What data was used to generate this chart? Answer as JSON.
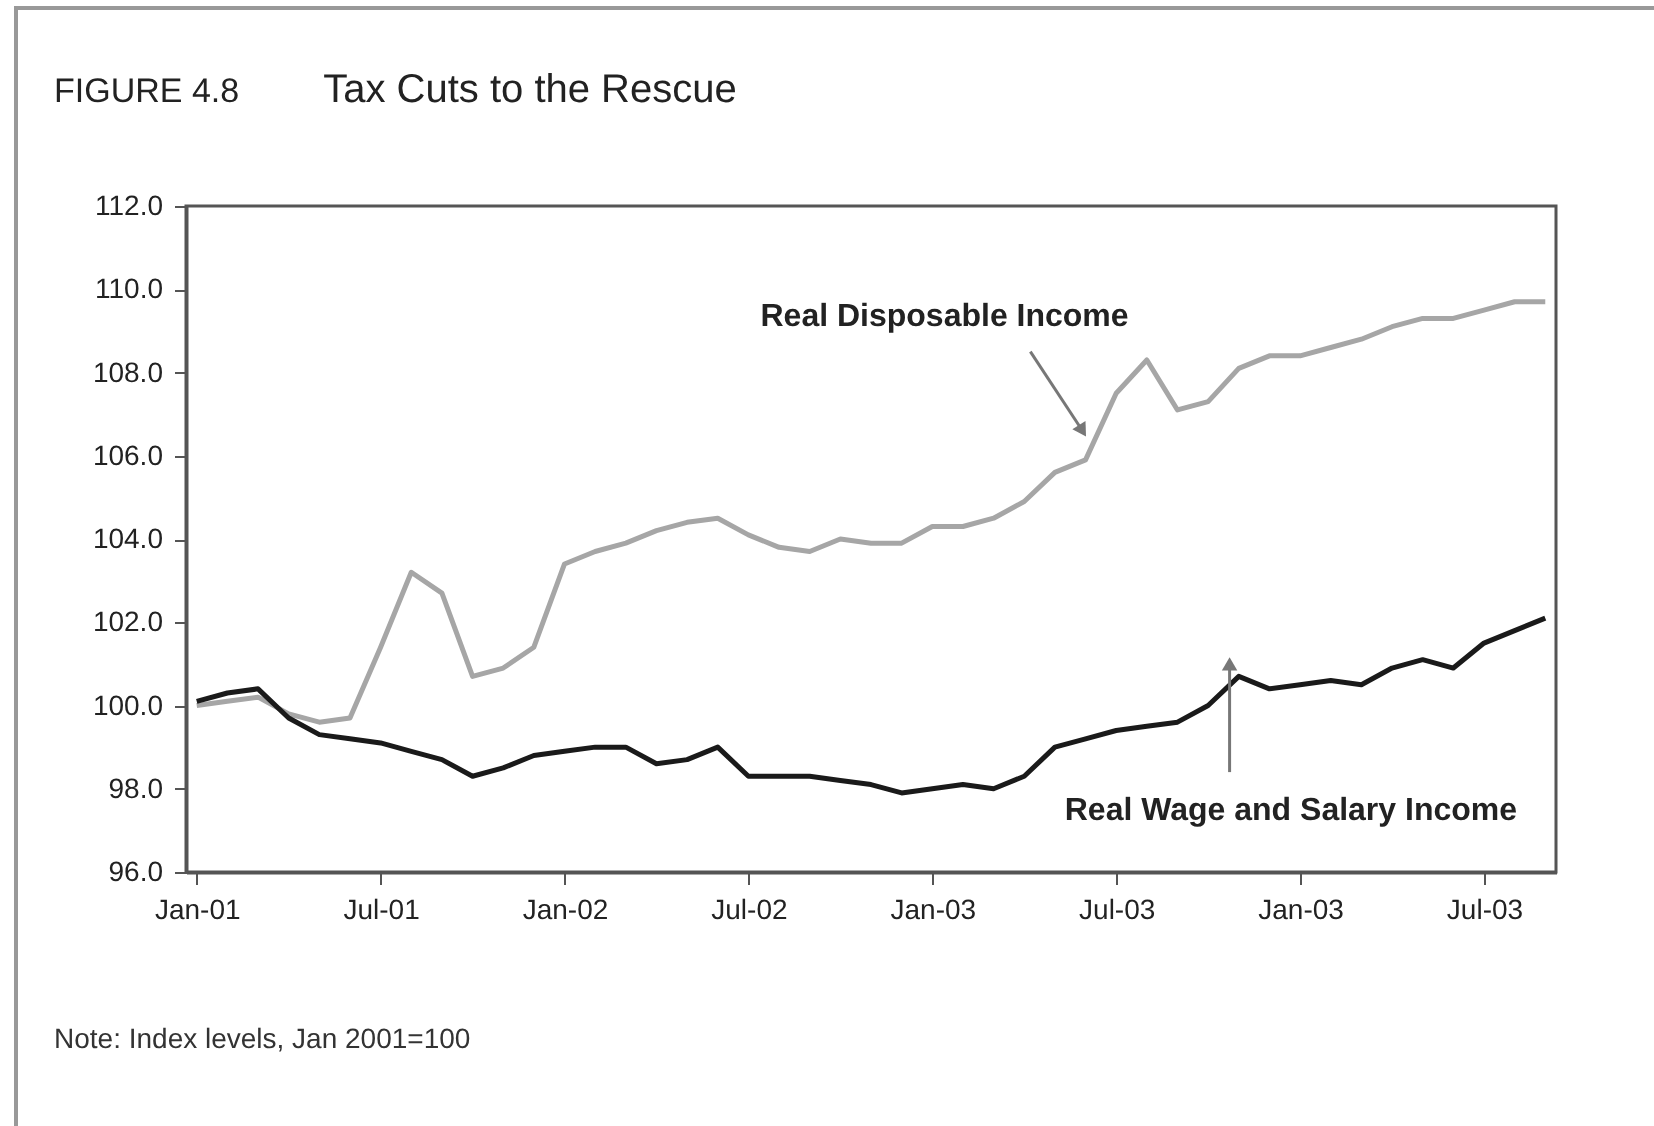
{
  "chart_data": {
    "type": "line",
    "title": "Tax Cuts to the Rescue",
    "annotations": [
      "FIGURE 4.8",
      "Note: Index levels, Jan 2001=100"
    ],
    "categories": [
      "Jan-01",
      null,
      null,
      null,
      null,
      null,
      "Jul-01",
      null,
      null,
      null,
      null,
      null,
      "Jan-02",
      null,
      null,
      null,
      null,
      null,
      "Jul-02",
      null,
      null,
      null,
      null,
      null,
      "Jan-03",
      null,
      null,
      null,
      null,
      null,
      "Jul-03",
      null,
      null,
      null,
      null,
      null,
      "Jan-03",
      null,
      null,
      null,
      null,
      null,
      "Jul-03",
      null,
      null
    ],
    "series": [
      {
        "name": "Real Disposable Income",
        "color": "#a6a6a6",
        "values": [
          100.0,
          100.1,
          100.2,
          99.8,
          99.6,
          99.7,
          101.4,
          103.2,
          102.7,
          100.7,
          100.9,
          101.4,
          103.4,
          103.7,
          103.9,
          104.2,
          104.4,
          104.5,
          104.1,
          103.8,
          103.7,
          104.0,
          103.9,
          103.9,
          104.3,
          104.3,
          104.5,
          104.9,
          105.6,
          105.9,
          107.5,
          108.3,
          107.1,
          107.3,
          108.1,
          108.4,
          108.4,
          108.6,
          108.8,
          109.1,
          109.3,
          109.3,
          109.5,
          109.7,
          109.7
        ]
      },
      {
        "name": "Real Wage and Salary Income",
        "color": "#1a1a1a",
        "values": [
          100.1,
          100.3,
          100.4,
          99.7,
          99.3,
          99.2,
          99.1,
          98.9,
          98.7,
          98.3,
          98.5,
          98.8,
          98.9,
          99.0,
          99.0,
          98.6,
          98.7,
          99.0,
          98.3,
          98.3,
          98.3,
          98.2,
          98.1,
          97.9,
          98.0,
          98.1,
          98.0,
          98.3,
          99.0,
          99.2,
          99.4,
          99.5,
          99.6,
          100.0,
          100.7,
          100.4,
          100.5,
          100.6,
          100.5,
          100.9,
          101.1,
          100.9,
          101.5,
          101.8,
          102.1
        ]
      }
    ],
    "ylim": [
      96,
      112
    ],
    "yticks": [
      {
        "value": 96,
        "label": "96.0"
      },
      {
        "value": 98,
        "label": "98.0"
      },
      {
        "value": 100,
        "label": "100.0"
      },
      {
        "value": 102,
        "label": "102.0"
      },
      {
        "value": 104,
        "label": "104.0"
      },
      {
        "value": 106,
        "label": "106.0"
      },
      {
        "value": 108,
        "label": "108.0"
      },
      {
        "value": 110,
        "label": "110.0"
      },
      {
        "value": 112,
        "label": "112.0"
      }
    ],
    "grid": false,
    "legend": false,
    "marker": "none",
    "line_style": "solid"
  }
}
